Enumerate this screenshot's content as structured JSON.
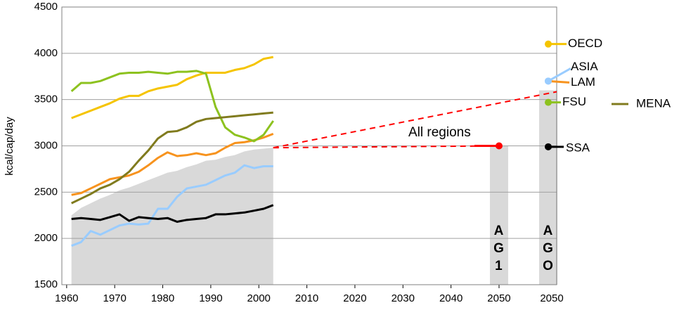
{
  "chart_data": {
    "type": "line",
    "y_label": "kcal/cap/day",
    "x": [
      1961,
      1963,
      1965,
      1967,
      1969,
      1971,
      1973,
      1975,
      1977,
      1979,
      1981,
      1983,
      1985,
      1987,
      1989,
      1991,
      1993,
      1995,
      1997,
      1999,
      2001,
      2003
    ],
    "xlim": [
      1959,
      2062
    ],
    "xticks": [
      1960,
      1970,
      1980,
      1990,
      2000,
      2010,
      2020,
      2030,
      2040,
      2050
    ],
    "ylim": [
      1500,
      4500
    ],
    "yticks": [
      1500,
      2000,
      2500,
      3000,
      3500,
      4000,
      4500
    ],
    "grid": true,
    "area": {
      "color": "#d9d9d9",
      "values": [
        2250,
        2330,
        2380,
        2430,
        2470,
        2520,
        2550,
        2590,
        2630,
        2670,
        2710,
        2730,
        2770,
        2800,
        2840,
        2850,
        2880,
        2900,
        2940,
        2960,
        2970,
        2980
      ]
    },
    "series": [
      {
        "name": "OECD",
        "color": "#f5c400",
        "values": [
          3300,
          3340,
          3380,
          3420,
          3460,
          3510,
          3540,
          3540,
          3590,
          3620,
          3640,
          3660,
          3720,
          3760,
          3790,
          3790,
          3790,
          3820,
          3840,
          3880,
          3940,
          3960
        ],
        "ago": 4100
      },
      {
        "name": "ASIA",
        "color": "#99ccff",
        "values": [
          1920,
          1960,
          2080,
          2040,
          2090,
          2140,
          2160,
          2150,
          2160,
          2320,
          2320,
          2450,
          2540,
          2560,
          2580,
          2630,
          2680,
          2710,
          2790,
          2760,
          2780,
          2780
        ],
        "ago": 3700
      },
      {
        "name": "LAM",
        "color": "#f7931e",
        "values": [
          2470,
          2490,
          2540,
          2590,
          2640,
          2660,
          2680,
          2720,
          2790,
          2870,
          2930,
          2890,
          2900,
          2920,
          2900,
          2920,
          2980,
          3030,
          3040,
          3060,
          3090,
          3130
        ],
        "ago": 3700
      },
      {
        "name": "FSU",
        "color": "#8dc21f",
        "values": [
          3590,
          3680,
          3680,
          3700,
          3740,
          3780,
          3790,
          3790,
          3800,
          3790,
          3780,
          3800,
          3800,
          3810,
          3780,
          3420,
          3200,
          3120,
          3090,
          3050,
          3120,
          3270
        ],
        "ago": 3470
      },
      {
        "name": "MENA",
        "color": "#807b1e",
        "values": [
          2380,
          2430,
          2480,
          2540,
          2580,
          2640,
          2720,
          2840,
          2950,
          3080,
          3150,
          3160,
          3200,
          3260,
          3290,
          3300,
          3310,
          3320,
          3330,
          3340,
          3350,
          3360
        ]
      },
      {
        "name": "SSA",
        "color": "#000000",
        "values": [
          2210,
          2220,
          2210,
          2200,
          2230,
          2260,
          2190,
          2230,
          2220,
          2210,
          2220,
          2180,
          2200,
          2210,
          2220,
          2260,
          2260,
          2270,
          2280,
          2300,
          2320,
          2360
        ],
        "ago": 2990
      }
    ],
    "projection": {
      "name": "All regions",
      "color": "#ff0000",
      "x": 2050,
      "value": 3000
    },
    "ag1": {
      "label": "AG1",
      "value": 3000
    },
    "ago": {
      "label": "AGO",
      "x_label": "2050",
      "value": 3600
    }
  }
}
